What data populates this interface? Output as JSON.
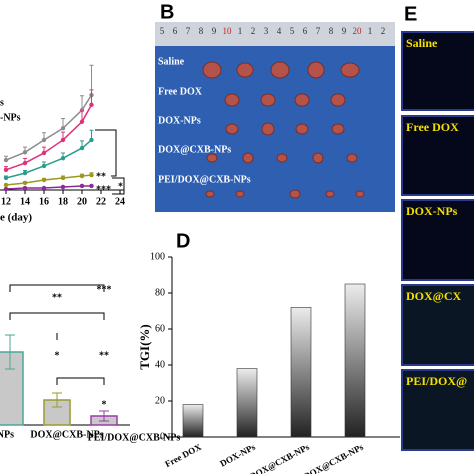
{
  "panel_letters": {
    "b": "B",
    "d": "D",
    "e": "E"
  },
  "chart_data": [
    {
      "type": "line",
      "x_label": "e (day)",
      "x": [
        12,
        14,
        16,
        18,
        20,
        21
      ],
      "xlim": [
        0,
        24
      ],
      "xticks": [
        12,
        14,
        16,
        18,
        20,
        22,
        24
      ],
      "ylim": [
        0,
        2000
      ],
      "legend_fragments": [
        "s",
        "-NPs"
      ],
      "series": [
        {
          "color": "#8c8c8c",
          "values": [
            460,
            580,
            770,
            950,
            1230,
            1460
          ],
          "errors": [
            60,
            80,
            110,
            150,
            220,
            460
          ]
        },
        {
          "color": "#e0307a",
          "values": [
            310,
            415,
            570,
            770,
            1050,
            1310
          ],
          "errors": [
            50,
            70,
            90,
            120,
            170,
            230
          ]
        },
        {
          "color": "#2a9d8f",
          "values": [
            185,
            260,
            370,
            490,
            645,
            770
          ],
          "errors": [
            30,
            40,
            60,
            80,
            110,
            150
          ]
        },
        {
          "color": "#9a9a1e",
          "values": [
            77,
            108,
            154,
            185,
            215,
            230
          ],
          "errors": [
            15,
            20,
            25,
            30,
            30,
            35
          ]
        },
        {
          "color": "#8b2a9b",
          "values": [
            15,
            30,
            30,
            46,
            62,
            62
          ],
          "errors": [
            8,
            10,
            10,
            12,
            15,
            15
          ]
        }
      ],
      "annotations": [
        "**",
        "***",
        "*"
      ]
    },
    {
      "type": "bar",
      "categories": [
        "NPs",
        "DOX@CXB-NPs",
        "PEI/DOX@CXB-NPs"
      ],
      "colors": [
        "#4aa79a",
        "#9c9a2a",
        "#9a3aa6"
      ],
      "values": [
        0.73,
        0.25,
        0.09
      ],
      "errors": [
        0.17,
        0.07,
        0.05
      ],
      "ylim": [
        0,
        1
      ],
      "annotations": [
        "**",
        "***",
        "*",
        "**",
        "*"
      ]
    },
    {
      "type": "bar",
      "y_label": "TGI(%)",
      "categories": [
        "Free DOX",
        "DOX-NPs",
        "DOX@CXB-NPs",
        "PEI/DOX@CXB-NPs"
      ],
      "values": [
        18,
        38,
        72,
        85
      ],
      "ylim": [
        0,
        100
      ],
      "yticks": [
        0,
        20,
        40,
        60,
        80,
        100
      ]
    }
  ],
  "photo": {
    "ruler": [
      "5",
      "6",
      "7",
      "8",
      "9",
      "10",
      "1",
      "2",
      "3",
      "4",
      "5",
      "6",
      "7",
      "8",
      "9",
      "20",
      "1",
      "2"
    ],
    "labels": [
      "Saline",
      "Free DOX",
      "DOX-NPs",
      "DOX@CXB-NPs",
      "PEI/DOX@CXB-NPs"
    ]
  },
  "fluorescence": {
    "labels": [
      "Saline",
      "Free DOX",
      "DOX-NPs",
      "DOX@CX",
      "PEI/DOX@"
    ]
  }
}
